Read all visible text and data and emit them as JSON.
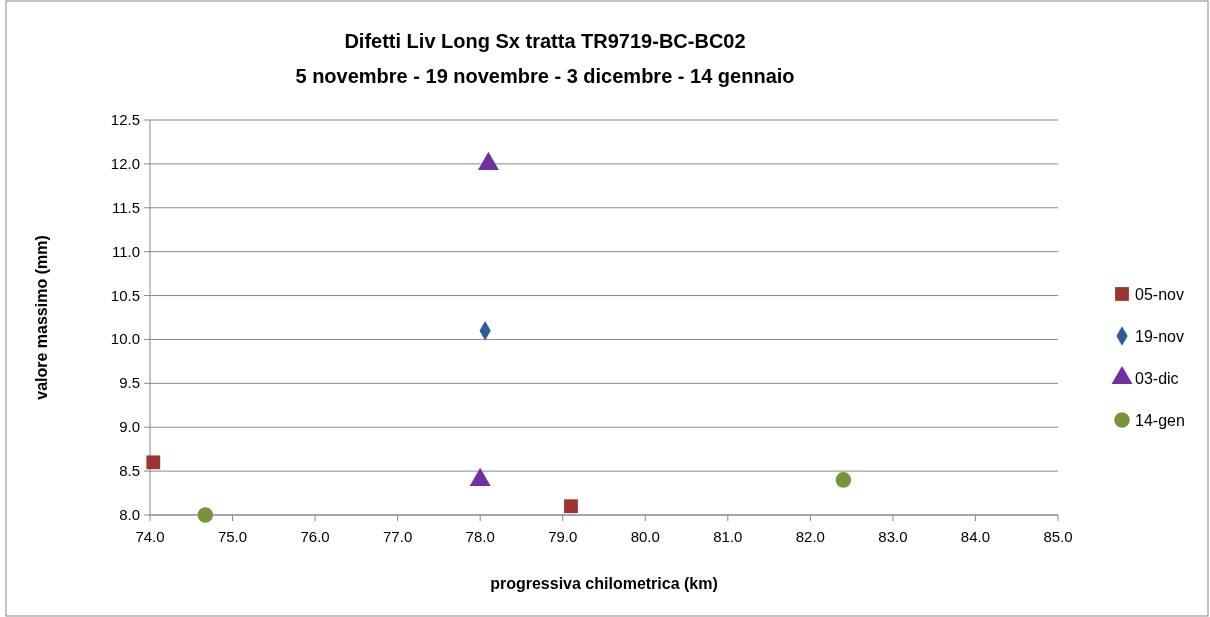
{
  "chart_data": {
    "type": "scatter",
    "title": "Difetti Liv Long Sx tratta TR9719-BC-BC02",
    "subtitle": "5 novembre - 19 novembre - 3 dicembre - 14 gennaio",
    "xlabel": "progressiva chilometrica (km)",
    "ylabel": "valore massimo (mm)",
    "xlim": [
      74,
      85
    ],
    "xticks": [
      {
        "value": 74,
        "label": "74.0"
      },
      {
        "value": 75,
        "label": "75.0"
      },
      {
        "value": 76,
        "label": "76.0"
      },
      {
        "value": 77,
        "label": "77.0"
      },
      {
        "value": 78,
        "label": "78.0"
      },
      {
        "value": 79,
        "label": "79.0"
      },
      {
        "value": 80,
        "label": "80.0"
      },
      {
        "value": 81,
        "label": "81.0"
      },
      {
        "value": 82,
        "label": "82.0"
      },
      {
        "value": 83,
        "label": "83.0"
      },
      {
        "value": 84,
        "label": "84.0"
      },
      {
        "value": 85,
        "label": "85.0"
      }
    ],
    "ylim": [
      8,
      12.5
    ],
    "yticks": [
      {
        "value": 8,
        "label": "8.0"
      },
      8.5,
      {
        "value": 9,
        "label": "9.0"
      },
      9.5,
      {
        "value": 10,
        "label": "10.0"
      },
      10.5,
      {
        "value": 11,
        "label": "11.0"
      },
      11.5,
      {
        "value": 12,
        "label": "12.0"
      },
      12.5
    ],
    "grid": "y",
    "legend": "right",
    "series": [
      {
        "name": "05-nov",
        "color": "#9b3432",
        "marker": "square",
        "x": [
          74.04,
          79.1
        ],
        "values": [
          8.6,
          8.1
        ]
      },
      {
        "name": "19-nov",
        "color": "#2e5d9a",
        "marker": "diamond",
        "x": [
          78.06
        ],
        "values": [
          10.1
        ]
      },
      {
        "name": "03-dic",
        "color": "#7030a0",
        "marker": "triangle",
        "x": [
          78.1,
          78.0
        ],
        "values": [
          12.0,
          8.4
        ]
      },
      {
        "name": "14-gen",
        "color": "#77933c",
        "marker": "circle",
        "x": [
          74.67,
          82.4
        ],
        "values": [
          8.0,
          8.4
        ]
      }
    ]
  }
}
